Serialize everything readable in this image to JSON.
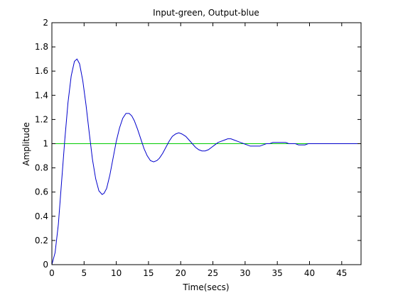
{
  "chart_data": {
    "type": "line",
    "title": "Input-green, Output-blue",
    "xlabel": "Time(secs)",
    "ylabel": "Amplitude",
    "xlim": [
      0,
      48
    ],
    "ylim": [
      0,
      2
    ],
    "grid": false,
    "x_ticks": [
      0,
      5,
      10,
      15,
      20,
      25,
      30,
      35,
      40,
      45
    ],
    "y_ticks": [
      0,
      0.2,
      0.4,
      0.6,
      0.8,
      1,
      1.2,
      1.4,
      1.6,
      1.8,
      2
    ],
    "x_tick_labels": [
      "0",
      "5",
      "10",
      "15",
      "20",
      "25",
      "30",
      "35",
      "40",
      "45"
    ],
    "y_tick_labels": [
      "0",
      "0.2",
      "0.4",
      "0.6",
      "0.8",
      "1",
      "1.2",
      "1.4",
      "1.6",
      "1.8",
      "2"
    ],
    "series": [
      {
        "color": "#00cc00",
        "x": [
          0,
          48
        ],
        "y": [
          1,
          1
        ]
      },
      {
        "color": "#0000cc",
        "x": [
          0,
          0.5,
          1,
          1.5,
          2,
          2.5,
          3,
          3.5,
          3.9,
          4.3,
          4.8,
          5.3,
          5.8,
          6.3,
          6.8,
          7.3,
          7.8,
          8.1,
          8.5,
          9,
          9.5,
          10,
          10.5,
          11,
          11.5,
          12,
          12.4,
          12.8,
          13.3,
          13.8,
          14.3,
          14.8,
          15.3,
          15.8,
          16.3,
          16.7,
          17.2,
          17.7,
          18.2,
          18.7,
          19.2,
          19.7,
          20.2,
          20.8,
          21.3,
          21.8,
          22.3,
          22.8,
          23.3,
          23.8,
          24.3,
          24.8,
          25.3,
          25.8,
          26.3,
          26.8,
          27.3,
          27.8,
          28.3,
          28.8,
          29.3,
          29.8,
          30.3,
          30.8,
          31.3,
          31.8,
          32.3,
          32.8,
          33.3,
          33.8,
          34.3,
          34.8,
          35.3,
          35.8,
          36.3,
          36.8,
          37.3,
          37.8,
          38.3,
          38.8,
          39.3,
          39.8,
          40.3,
          40.8,
          41.3,
          41.8,
          42.3,
          42.8,
          43.3,
          43.8,
          44.3,
          44.8,
          45.3,
          45.8,
          46.3,
          46.8,
          47.3,
          48
        ],
        "y": [
          0,
          0.1,
          0.33,
          0.68,
          1.03,
          1.34,
          1.56,
          1.68,
          1.7,
          1.66,
          1.52,
          1.32,
          1.09,
          0.87,
          0.71,
          0.61,
          0.58,
          0.59,
          0.63,
          0.74,
          0.88,
          1.02,
          1.13,
          1.21,
          1.25,
          1.25,
          1.23,
          1.19,
          1.12,
          1.04,
          0.96,
          0.9,
          0.86,
          0.85,
          0.86,
          0.88,
          0.92,
          0.97,
          1.02,
          1.06,
          1.08,
          1.09,
          1.08,
          1.06,
          1.03,
          1.0,
          0.97,
          0.95,
          0.94,
          0.94,
          0.95,
          0.97,
          0.99,
          1.01,
          1.02,
          1.03,
          1.04,
          1.04,
          1.03,
          1.02,
          1.01,
          1.0,
          0.99,
          0.98,
          0.98,
          0.98,
          0.98,
          0.99,
          1.0,
          1.0,
          1.01,
          1.01,
          1.01,
          1.01,
          1.01,
          1.0,
          1.0,
          1.0,
          0.99,
          0.99,
          0.99,
          1.0,
          1.0,
          1.0,
          1.0,
          1.0,
          1.0,
          1.0,
          1.0,
          1.0,
          1.0,
          1.0,
          1.0,
          1.0,
          1.0,
          1.0,
          1.0,
          1.0
        ]
      }
    ]
  }
}
